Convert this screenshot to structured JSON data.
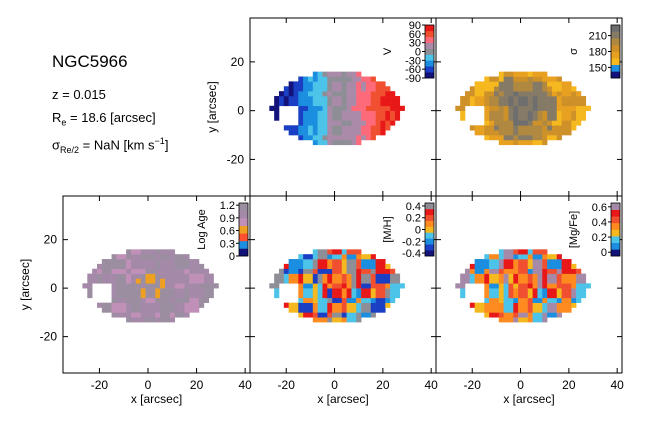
{
  "info": {
    "galaxy": "NGC5966",
    "redshift": "z = 0.015",
    "re_symbol": "R",
    "re_sub": "e",
    "re_value": " = 18.6 [arcsec]",
    "sigma_symbol": "σ",
    "sigma_sub": "Re/2",
    "sigma_value": " = NaN [km s",
    "sigma_sup": "−1",
    "sigma_close": "]"
  },
  "chart_data": {
    "type": "heatmap",
    "axes": {
      "xlabel": "x [arcsec]",
      "ylabel": "y [arcsec]",
      "xlim": [
        -35,
        42
      ],
      "ylim": [
        -35,
        38
      ],
      "xticks": [
        -20,
        0,
        20,
        40
      ],
      "yticks": [
        -20,
        0,
        20
      ]
    },
    "galaxy_footprint": {
      "center": [
        0,
        0
      ],
      "semi_major_x": 27,
      "semi_minor_y": 12,
      "hole_center": [
        -20,
        -3
      ],
      "hole_radius": 5
    },
    "panels": [
      {
        "id": "velocity",
        "colorbar_label": "V",
        "cbar_range": [
          -90,
          90
        ],
        "cbar_ticks": [
          90,
          60,
          30,
          0,
          -30,
          -60,
          -90
        ],
        "palette": [
          "#12127a",
          "#1a3fc4",
          "#1b8ee0",
          "#4cc3e8",
          "#8e8e96",
          "#a98aa8",
          "#ff6a7a",
          "#f05030",
          "#e81818"
        ],
        "field": "rotation"
      },
      {
        "id": "dispersion",
        "colorbar_label": "σ",
        "cbar_range": [
          130,
          230
        ],
        "cbar_ticks": [
          210,
          180,
          150
        ],
        "palette": [
          "#12127a",
          "#1b8ee0",
          "#f5b81e",
          "#e8a020",
          "#ce9028",
          "#b08840",
          "#857a66",
          "#6e6e6e"
        ],
        "field": "dispersion"
      },
      {
        "id": "log_age",
        "colorbar_label": "Log Age",
        "cbar_range": [
          0.0,
          1.25
        ],
        "cbar_ticks": [
          1.2,
          0.9,
          0.6,
          0.3,
          0.0
        ],
        "palette": [
          "#12127a",
          "#1b8ee0",
          "#ff5030",
          "#f0a020",
          "#c090b8",
          "#a48aa8",
          "#9a8ea0"
        ],
        "field": "age"
      },
      {
        "id": "metallicity",
        "colorbar_label": "[M/H]",
        "cbar_range": [
          -0.45,
          0.45
        ],
        "cbar_ticks": [
          0.4,
          0.2,
          0.0,
          -0.2,
          -0.4
        ],
        "palette": [
          "#12127a",
          "#1a3fc4",
          "#1b8ee0",
          "#4cc3e8",
          "#f5b81e",
          "#ff8a20",
          "#f05030",
          "#e81818",
          "#8e8e96"
        ],
        "field": "metal"
      },
      {
        "id": "mg_fe",
        "colorbar_label": "[Mg/Fe]",
        "cbar_range": [
          -0.05,
          0.65
        ],
        "cbar_ticks": [
          0.6,
          0.4,
          0.2,
          0.0
        ],
        "palette": [
          "#12127a",
          "#1b8ee0",
          "#4cc3e8",
          "#f5b81e",
          "#ff8a20",
          "#f05030",
          "#e81818",
          "#a48aa8"
        ],
        "field": "mgfe"
      }
    ]
  }
}
